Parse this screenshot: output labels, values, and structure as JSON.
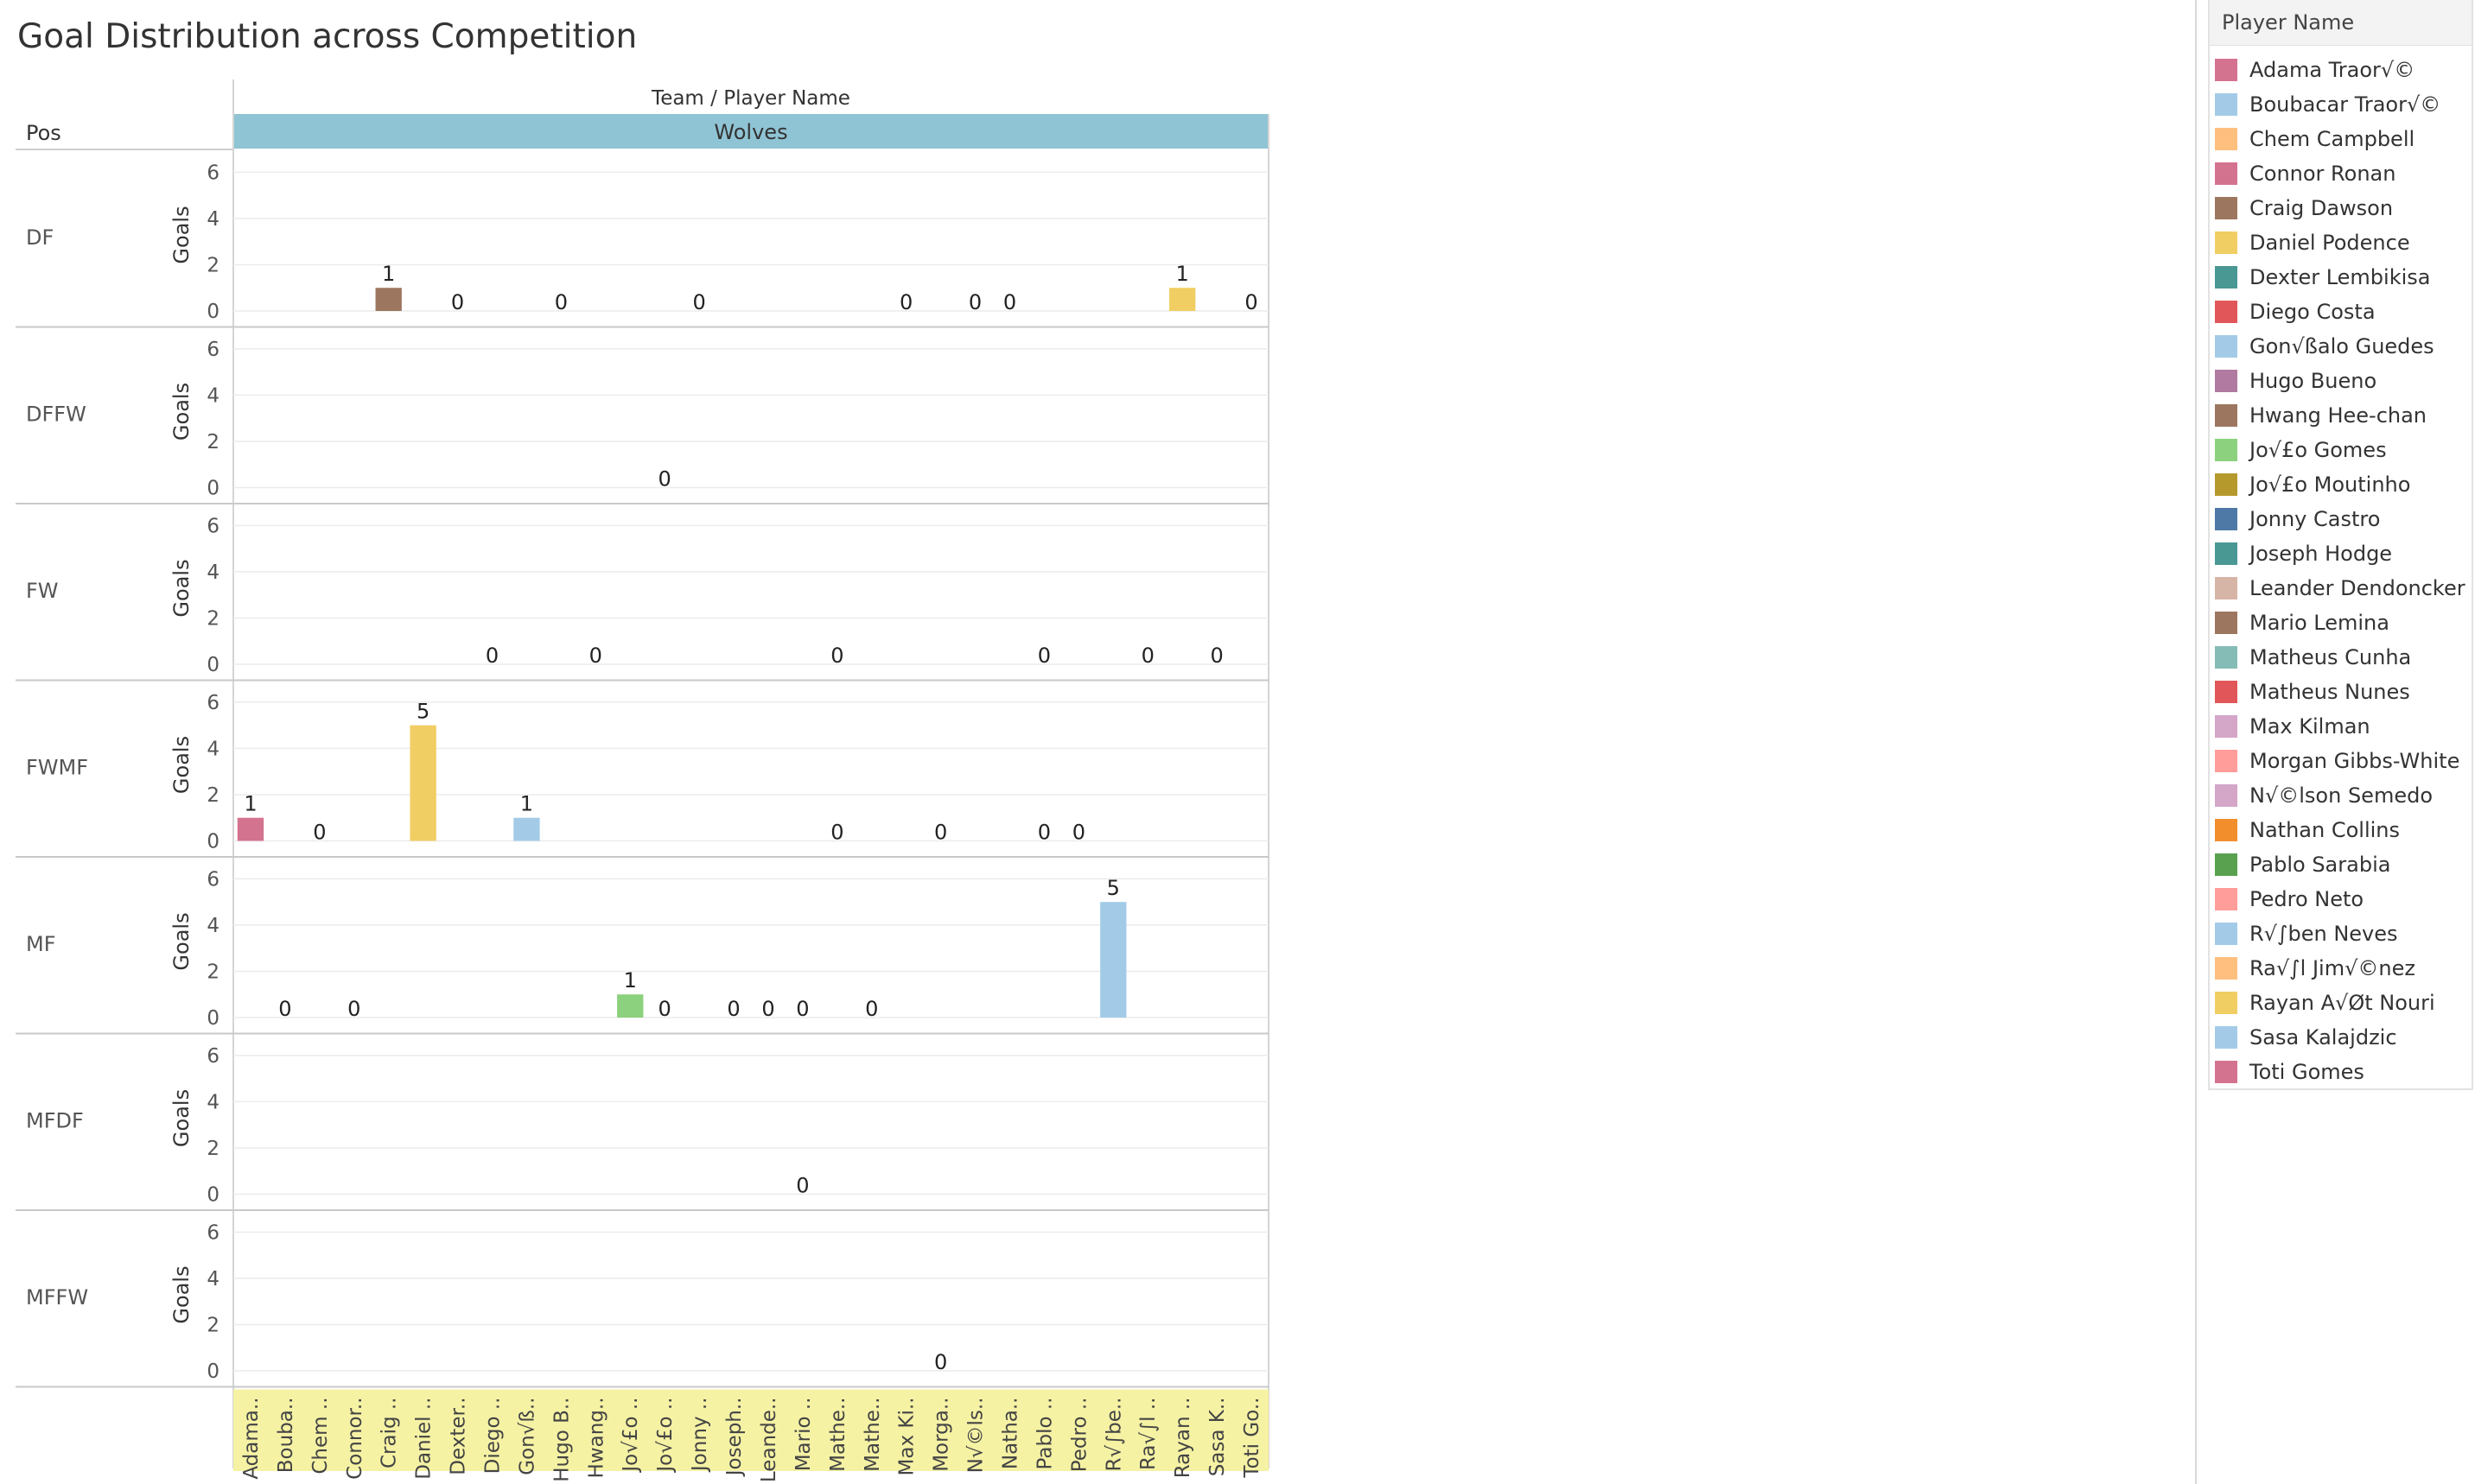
{
  "page": {
    "title": "Goal Distribution across Competition"
  },
  "header": {
    "pos_label": "Pos",
    "columns_label": "Team  /  Player Name",
    "team": "Wolves"
  },
  "legend": {
    "title": "Player Name",
    "items": [
      {
        "label": "Adama Traor√©",
        "color": "#d4738f"
      },
      {
        "label": "Boubacar Traor√©",
        "color": "#a3cbe8"
      },
      {
        "label": "Chem Campbell",
        "color": "#ffbf7f"
      },
      {
        "label": "Connor Ronan",
        "color": "#d4738f"
      },
      {
        "label": "Craig Dawson",
        "color": "#9d7660"
      },
      {
        "label": "Daniel Podence",
        "color": "#f1ce63"
      },
      {
        "label": "Dexter Lembikisa",
        "color": "#499894"
      },
      {
        "label": "Diego Costa",
        "color": "#e15759"
      },
      {
        "label": "Gon√ßalo Guedes",
        "color": "#a3cbe8"
      },
      {
        "label": "Hugo Bueno",
        "color": "#b07aa1"
      },
      {
        "label": "Hwang Hee-chan",
        "color": "#9d7660"
      },
      {
        "label": "Jo√£o Gomes",
        "color": "#8cd17d"
      },
      {
        "label": "Jo√£o Moutinho",
        "color": "#b6992d"
      },
      {
        "label": "Jonny Castro",
        "color": "#4e79a7"
      },
      {
        "label": "Joseph Hodge",
        "color": "#499894"
      },
      {
        "label": "Leander Dendoncker",
        "color": "#d7b5a6"
      },
      {
        "label": "Mario Lemina",
        "color": "#9d7660"
      },
      {
        "label": "Matheus Cunha",
        "color": "#86bcb6"
      },
      {
        "label": "Matheus Nunes",
        "color": "#e15759"
      },
      {
        "label": "Max Kilman",
        "color": "#d4a6c8"
      },
      {
        "label": "Morgan Gibbs-White",
        "color": "#ff9d9a"
      },
      {
        "label": "N√©lson Semedo",
        "color": "#d4a6c8"
      },
      {
        "label": "Nathan Collins",
        "color": "#f28e2b"
      },
      {
        "label": "Pablo Sarabia",
        "color": "#59a14f"
      },
      {
        "label": "Pedro Neto",
        "color": "#ff9d9a"
      },
      {
        "label": "R√∫ben Neves",
        "color": "#a3cbe8"
      },
      {
        "label": "Ra√∫l Jim√©nez",
        "color": "#ffbf7f"
      },
      {
        "label": "Rayan A√Øt Nouri",
        "color": "#f1ce63"
      },
      {
        "label": "Sasa Kalajdzic",
        "color": "#a3cbe8"
      },
      {
        "label": "Toti Gomes",
        "color": "#d4738f"
      }
    ]
  },
  "chart_data": {
    "type": "bar",
    "title": "Goal Distribution across Competition",
    "ylabel": "Goals",
    "ylim": [
      0,
      6.5
    ],
    "yticks": [
      0,
      2,
      4,
      6
    ],
    "team": "Wolves",
    "rows": [
      "DF",
      "DFFW",
      "FW",
      "FWMF",
      "MF",
      "MFDF",
      "MFFW"
    ],
    "categories": [
      "Adama..",
      "Bouba..",
      "Chem ..",
      "Connor..",
      "Craig ..",
      "Daniel ..",
      "Dexter..",
      "Diego ..",
      "Gon√ß..",
      "Hugo B..",
      "Hwang..",
      "Jo√£o ..",
      "Jo√£o ..",
      "Jonny ..",
      "Joseph..",
      "Leande..",
      "Mario ..",
      "Mathe..",
      "Mathe..",
      "Max Ki..",
      "Morga..",
      "N√©ls..",
      "Natha..",
      "Pablo ..",
      "Pedro ..",
      "R√∫be..",
      "Ra√∫l ..",
      "Rayan ..",
      "Sasa K..",
      "Toti Go.."
    ],
    "marks": [
      {
        "row": "DF",
        "col": 4,
        "value": 1
      },
      {
        "row": "DF",
        "col": 6,
        "value": 0
      },
      {
        "row": "DF",
        "col": 9,
        "value": 0
      },
      {
        "row": "DF",
        "col": 13,
        "value": 0
      },
      {
        "row": "DF",
        "col": 19,
        "value": 0
      },
      {
        "row": "DF",
        "col": 21,
        "value": 0
      },
      {
        "row": "DF",
        "col": 22,
        "value": 0
      },
      {
        "row": "DF",
        "col": 27,
        "value": 1
      },
      {
        "row": "DF",
        "col": 29,
        "value": 0
      },
      {
        "row": "DFFW",
        "col": 12,
        "value": 0
      },
      {
        "row": "FW",
        "col": 7,
        "value": 0
      },
      {
        "row": "FW",
        "col": 10,
        "value": 0
      },
      {
        "row": "FW",
        "col": 17,
        "value": 0
      },
      {
        "row": "FW",
        "col": 23,
        "value": 0
      },
      {
        "row": "FW",
        "col": 26,
        "value": 0
      },
      {
        "row": "FW",
        "col": 28,
        "value": 0
      },
      {
        "row": "FWMF",
        "col": 0,
        "value": 1
      },
      {
        "row": "FWMF",
        "col": 2,
        "value": 0
      },
      {
        "row": "FWMF",
        "col": 5,
        "value": 5
      },
      {
        "row": "FWMF",
        "col": 8,
        "value": 1
      },
      {
        "row": "FWMF",
        "col": 17,
        "value": 0
      },
      {
        "row": "FWMF",
        "col": 20,
        "value": 0
      },
      {
        "row": "FWMF",
        "col": 23,
        "value": 0
      },
      {
        "row": "FWMF",
        "col": 24,
        "value": 0
      },
      {
        "row": "MF",
        "col": 1,
        "value": 0
      },
      {
        "row": "MF",
        "col": 3,
        "value": 0
      },
      {
        "row": "MF",
        "col": 11,
        "value": 1
      },
      {
        "row": "MF",
        "col": 12,
        "value": 0
      },
      {
        "row": "MF",
        "col": 14,
        "value": 0
      },
      {
        "row": "MF",
        "col": 15,
        "value": 0
      },
      {
        "row": "MF",
        "col": 16,
        "value": 0
      },
      {
        "row": "MF",
        "col": 18,
        "value": 0
      },
      {
        "row": "MF",
        "col": 25,
        "value": 5
      },
      {
        "row": "MFDF",
        "col": 16,
        "value": 0
      },
      {
        "row": "MFFW",
        "col": 20,
        "value": 0
      }
    ]
  }
}
